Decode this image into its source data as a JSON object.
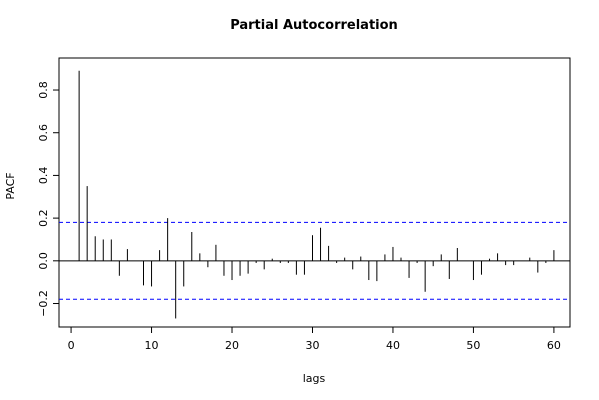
{
  "chart_data": {
    "type": "bar",
    "title": "Partial Autocorrelation",
    "xlabel": "lags",
    "ylabel": "PACF",
    "xlim": [
      -1.5,
      62
    ],
    "ylim": [
      -0.31,
      0.95
    ],
    "x_ticks": [
      0,
      10,
      20,
      30,
      40,
      50,
      60
    ],
    "y_ticks": [
      -0.2,
      0.0,
      0.2,
      0.4,
      0.6,
      0.8
    ],
    "y_tick_labels": [
      "−0.2",
      "0.0",
      "0.2",
      "0.4",
      "0.6",
      "0.8"
    ],
    "confidence_bound": 0.18,
    "zero_line": 0,
    "colors": {
      "bars": "#000000",
      "confidence": "#0000ff",
      "frame": "#000000"
    },
    "lags": [
      1,
      2,
      3,
      4,
      5,
      6,
      7,
      8,
      9,
      10,
      11,
      12,
      13,
      14,
      15,
      16,
      17,
      18,
      19,
      20,
      21,
      22,
      23,
      24,
      25,
      26,
      27,
      28,
      29,
      30,
      31,
      32,
      33,
      34,
      35,
      36,
      37,
      38,
      39,
      40,
      41,
      42,
      43,
      44,
      45,
      46,
      47,
      48,
      49,
      50,
      51,
      52,
      53,
      54,
      55,
      56,
      57,
      58,
      59,
      60
    ],
    "values": [
      0.89,
      0.35,
      0.115,
      0.1,
      0.1,
      -0.07,
      0.055,
      0.0,
      -0.115,
      -0.12,
      0.05,
      0.2,
      -0.27,
      -0.12,
      0.135,
      0.035,
      -0.03,
      0.075,
      -0.07,
      -0.09,
      -0.07,
      -0.06,
      -0.01,
      -0.04,
      0.01,
      -0.01,
      -0.01,
      -0.065,
      -0.065,
      0.12,
      0.155,
      0.07,
      -0.01,
      0.015,
      -0.04,
      0.02,
      -0.09,
      -0.095,
      0.03,
      0.065,
      0.015,
      -0.08,
      -0.01,
      -0.145,
      -0.025,
      0.03,
      -0.085,
      0.06,
      0.0,
      -0.09,
      -0.065,
      0.01,
      0.035,
      -0.02,
      -0.02,
      0.0,
      0.015,
      -0.055,
      -0.01,
      0.05
    ]
  }
}
